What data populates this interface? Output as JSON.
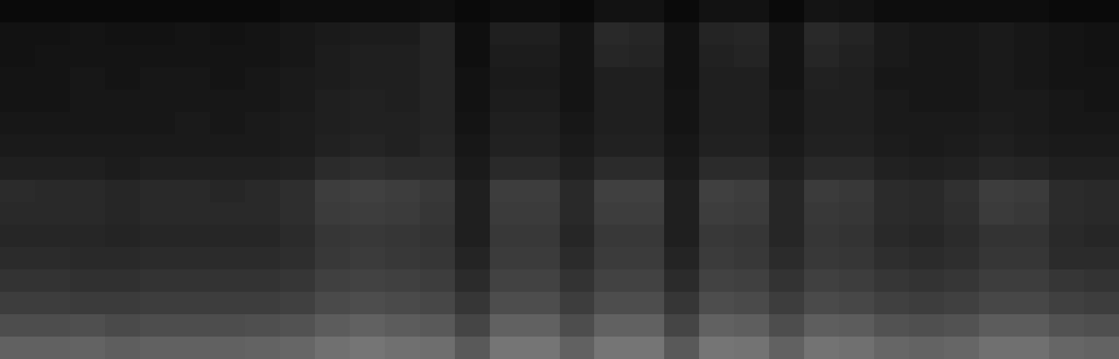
{
  "chart_data": {
    "type": "heatmap",
    "tick_labels": false,
    "clim": [
      0,
      1
    ],
    "cells": [
      [
        0.04,
        0.04,
        0.04,
        0.04,
        0.04,
        0.04,
        0.04,
        0.04,
        0.05,
        0.05,
        0.05,
        0.05,
        0.06,
        0.04,
        0.05,
        0.05,
        0.04,
        0.07,
        0.07,
        0.04,
        0.07,
        0.07,
        0.04,
        0.08,
        0.07,
        0.05,
        0.05,
        0.05,
        0.05,
        0.05,
        0.04,
        0.04
      ],
      [
        0.07,
        0.07,
        0.08,
        0.07,
        0.07,
        0.08,
        0.07,
        0.08,
        0.09,
        0.1,
        0.11,
        0.11,
        0.14,
        0.06,
        0.12,
        0.12,
        0.08,
        0.16,
        0.15,
        0.07,
        0.14,
        0.15,
        0.08,
        0.16,
        0.14,
        0.1,
        0.09,
        0.09,
        0.1,
        0.09,
        0.08,
        0.07
      ],
      [
        0.07,
        0.08,
        0.08,
        0.08,
        0.08,
        0.08,
        0.08,
        0.08,
        0.09,
        0.11,
        0.12,
        0.12,
        0.14,
        0.06,
        0.11,
        0.11,
        0.08,
        0.15,
        0.14,
        0.07,
        0.13,
        0.14,
        0.08,
        0.15,
        0.13,
        0.1,
        0.09,
        0.09,
        0.1,
        0.09,
        0.08,
        0.07
      ],
      [
        0.08,
        0.08,
        0.09,
        0.08,
        0.09,
        0.09,
        0.08,
        0.09,
        0.1,
        0.11,
        0.12,
        0.12,
        0.14,
        0.07,
        0.1,
        0.1,
        0.08,
        0.12,
        0.12,
        0.07,
        0.12,
        0.12,
        0.08,
        0.13,
        0.12,
        0.09,
        0.09,
        0.09,
        0.1,
        0.09,
        0.08,
        0.08
      ],
      [
        0.08,
        0.08,
        0.09,
        0.09,
        0.09,
        0.09,
        0.09,
        0.09,
        0.1,
        0.12,
        0.13,
        0.12,
        0.14,
        0.07,
        0.11,
        0.11,
        0.08,
        0.12,
        0.12,
        0.08,
        0.12,
        0.12,
        0.09,
        0.12,
        0.12,
        0.1,
        0.09,
        0.09,
        0.1,
        0.1,
        0.09,
        0.08
      ],
      [
        0.09,
        0.09,
        0.09,
        0.09,
        0.09,
        0.1,
        0.09,
        0.1,
        0.11,
        0.12,
        0.13,
        0.13,
        0.14,
        0.08,
        0.12,
        0.12,
        0.09,
        0.12,
        0.12,
        0.08,
        0.12,
        0.12,
        0.09,
        0.12,
        0.12,
        0.1,
        0.1,
        0.1,
        0.11,
        0.1,
        0.09,
        0.09
      ],
      [
        0.1,
        0.1,
        0.1,
        0.1,
        0.1,
        0.1,
        0.1,
        0.1,
        0.11,
        0.13,
        0.14,
        0.13,
        0.15,
        0.09,
        0.13,
        0.13,
        0.1,
        0.13,
        0.13,
        0.09,
        0.13,
        0.13,
        0.1,
        0.13,
        0.13,
        0.11,
        0.1,
        0.11,
        0.12,
        0.11,
        0.1,
        0.1
      ],
      [
        0.12,
        0.12,
        0.12,
        0.11,
        0.12,
        0.12,
        0.12,
        0.12,
        0.13,
        0.17,
        0.18,
        0.17,
        0.17,
        0.1,
        0.16,
        0.16,
        0.12,
        0.17,
        0.17,
        0.1,
        0.17,
        0.17,
        0.12,
        0.16,
        0.16,
        0.13,
        0.12,
        0.13,
        0.15,
        0.14,
        0.12,
        0.12
      ],
      [
        0.17,
        0.16,
        0.16,
        0.15,
        0.16,
        0.16,
        0.15,
        0.16,
        0.18,
        0.24,
        0.25,
        0.24,
        0.22,
        0.12,
        0.24,
        0.24,
        0.16,
        0.25,
        0.25,
        0.12,
        0.25,
        0.24,
        0.15,
        0.23,
        0.22,
        0.17,
        0.16,
        0.19,
        0.24,
        0.23,
        0.17,
        0.16
      ],
      [
        0.16,
        0.16,
        0.16,
        0.15,
        0.16,
        0.16,
        0.16,
        0.16,
        0.18,
        0.23,
        0.24,
        0.23,
        0.21,
        0.12,
        0.23,
        0.23,
        0.16,
        0.24,
        0.24,
        0.12,
        0.24,
        0.23,
        0.15,
        0.22,
        0.21,
        0.17,
        0.16,
        0.18,
        0.23,
        0.22,
        0.17,
        0.16
      ],
      [
        0.15,
        0.15,
        0.15,
        0.14,
        0.15,
        0.15,
        0.15,
        0.15,
        0.17,
        0.21,
        0.22,
        0.21,
        0.2,
        0.12,
        0.22,
        0.22,
        0.15,
        0.22,
        0.22,
        0.12,
        0.22,
        0.21,
        0.15,
        0.21,
        0.2,
        0.16,
        0.15,
        0.17,
        0.2,
        0.2,
        0.16,
        0.15
      ],
      [
        0.17,
        0.17,
        0.16,
        0.16,
        0.17,
        0.17,
        0.17,
        0.17,
        0.18,
        0.22,
        0.23,
        0.22,
        0.21,
        0.14,
        0.23,
        0.23,
        0.17,
        0.23,
        0.23,
        0.14,
        0.23,
        0.22,
        0.17,
        0.22,
        0.21,
        0.18,
        0.17,
        0.18,
        0.21,
        0.21,
        0.17,
        0.17
      ],
      [
        0.2,
        0.2,
        0.19,
        0.19,
        0.2,
        0.2,
        0.2,
        0.2,
        0.21,
        0.25,
        0.26,
        0.25,
        0.24,
        0.17,
        0.26,
        0.26,
        0.2,
        0.26,
        0.26,
        0.17,
        0.26,
        0.25,
        0.2,
        0.25,
        0.24,
        0.21,
        0.2,
        0.21,
        0.24,
        0.24,
        0.21,
        0.2
      ],
      [
        0.24,
        0.24,
        0.23,
        0.23,
        0.24,
        0.24,
        0.24,
        0.24,
        0.25,
        0.29,
        0.3,
        0.29,
        0.28,
        0.21,
        0.3,
        0.3,
        0.24,
        0.3,
        0.3,
        0.21,
        0.3,
        0.29,
        0.24,
        0.29,
        0.28,
        0.25,
        0.24,
        0.25,
        0.28,
        0.28,
        0.25,
        0.24
      ],
      [
        0.3,
        0.3,
        0.31,
        0.29,
        0.3,
        0.3,
        0.3,
        0.31,
        0.32,
        0.36,
        0.38,
        0.36,
        0.35,
        0.27,
        0.38,
        0.38,
        0.3,
        0.38,
        0.38,
        0.27,
        0.38,
        0.37,
        0.3,
        0.37,
        0.36,
        0.32,
        0.31,
        0.32,
        0.36,
        0.36,
        0.32,
        0.31
      ],
      [
        0.38,
        0.38,
        0.39,
        0.37,
        0.38,
        0.38,
        0.38,
        0.39,
        0.4,
        0.44,
        0.46,
        0.44,
        0.43,
        0.35,
        0.46,
        0.46,
        0.38,
        0.46,
        0.46,
        0.35,
        0.46,
        0.45,
        0.38,
        0.45,
        0.44,
        0.4,
        0.39,
        0.4,
        0.44,
        0.44,
        0.4,
        0.39
      ]
    ]
  }
}
